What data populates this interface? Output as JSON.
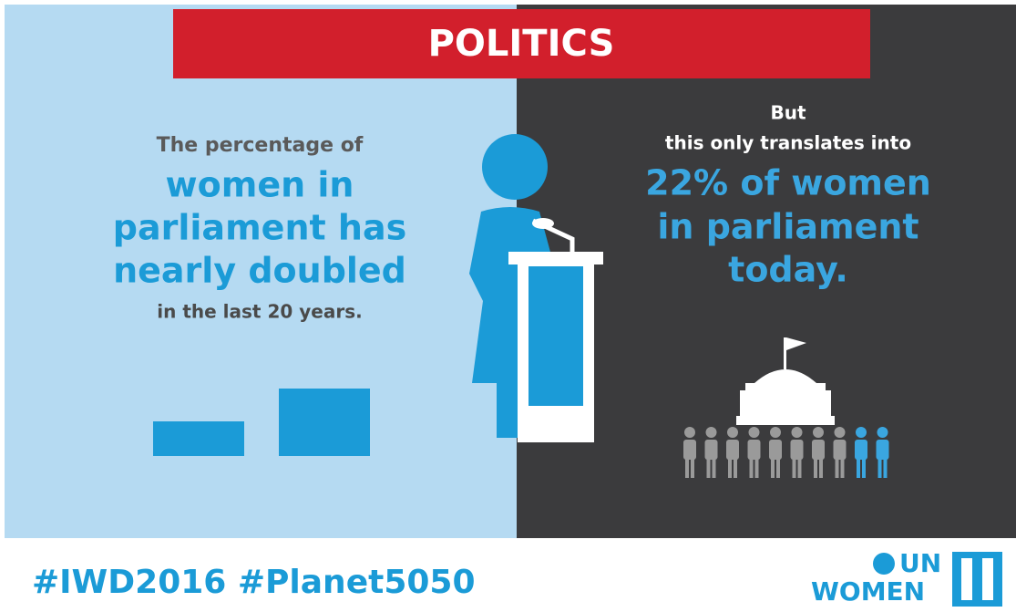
{
  "banner": {
    "title": "POLITICS"
  },
  "left": {
    "lines": [
      "The percentage of",
      "women in",
      "parliament has",
      "nearly doubled",
      "in the last 20 years."
    ]
  },
  "right": {
    "lines": [
      "But",
      "this only translates into",
      "22% of women",
      "in parliament",
      "today."
    ]
  },
  "footer": {
    "hashtags": "#IWD2016 #Planet5050",
    "logo": {
      "top": "UN",
      "bottom": "WOMEN"
    }
  }
}
